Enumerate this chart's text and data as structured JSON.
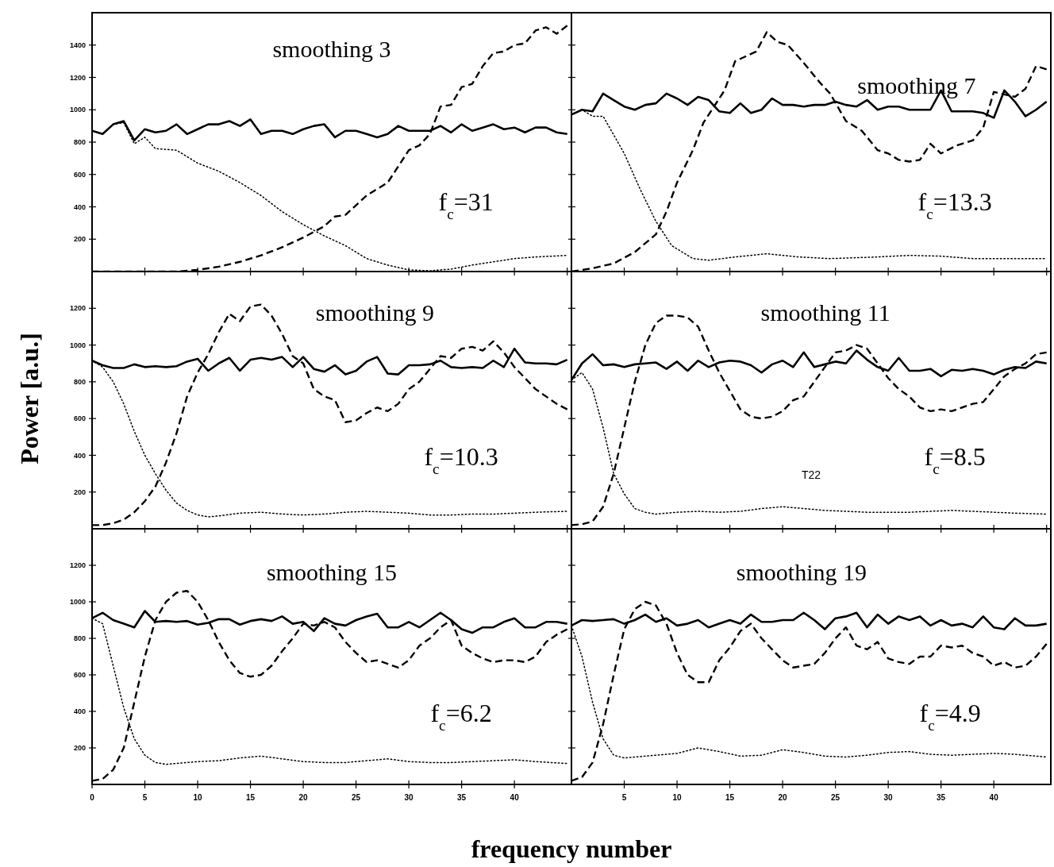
{
  "chart_data": [
    {
      "type": "line",
      "title": "smoothing 3",
      "annotations": [
        "f$_{c}$=31"
      ],
      "xlim": [
        0,
        45.4
      ],
      "xticks": [
        0,
        5,
        10,
        15,
        20,
        25,
        30,
        35,
        40,
        45
      ],
      "ylim": [
        0,
        1600
      ],
      "yticks": [
        200,
        400,
        600,
        800,
        1000,
        1200,
        1400
      ],
      "tick_labels": "y",
      "series": [
        {
          "color": "#000000",
          "line_style": "solid",
          "x": [
            0,
            1,
            2,
            3,
            4,
            5,
            6,
            7,
            8,
            9,
            10,
            11,
            12,
            13,
            14,
            15,
            16,
            17,
            18,
            19,
            20,
            21,
            22,
            23,
            24,
            25,
            26,
            27,
            28,
            29,
            30,
            31,
            32,
            33,
            34,
            35,
            36,
            37,
            38,
            39,
            40,
            41,
            42,
            43,
            44,
            45
          ],
          "values": [
            870,
            850,
            910,
            930,
            810,
            880,
            860,
            870,
            910,
            850,
            880,
            910,
            910,
            930,
            900,
            940,
            850,
            870,
            870,
            850,
            880,
            900,
            910,
            830,
            870,
            870,
            850,
            830,
            850,
            900,
            870,
            870,
            870,
            900,
            860,
            910,
            870,
            890,
            910,
            880,
            890,
            860,
            890,
            890,
            860,
            850
          ]
        },
        {
          "color": "#000000",
          "line_style": "dashed",
          "x": [
            0,
            2,
            4,
            6,
            8,
            10,
            12,
            14,
            16,
            18,
            20,
            22,
            23,
            24,
            26,
            28,
            30,
            31,
            32,
            33,
            34,
            35,
            36,
            37,
            38,
            39,
            40,
            41,
            42,
            43,
            44,
            45
          ],
          "values": [
            0,
            0,
            0,
            0,
            0,
            10,
            30,
            60,
            100,
            150,
            210,
            280,
            340,
            350,
            470,
            550,
            750,
            780,
            850,
            1020,
            1030,
            1140,
            1160,
            1270,
            1350,
            1360,
            1400,
            1410,
            1490,
            1510,
            1470,
            1520
          ]
        },
        {
          "color": "#000000",
          "line_style": "dotted",
          "x": [
            0,
            1,
            2,
            3,
            4,
            5,
            6,
            8,
            10,
            12,
            14,
            16,
            18,
            20,
            22,
            24,
            26,
            28,
            30,
            32,
            34,
            36,
            38,
            40,
            42,
            45
          ],
          "values": [
            870,
            850,
            910,
            920,
            790,
            830,
            760,
            750,
            670,
            620,
            550,
            470,
            370,
            290,
            220,
            160,
            80,
            40,
            10,
            5,
            15,
            40,
            60,
            80,
            90,
            100
          ]
        }
      ]
    },
    {
      "type": "line",
      "title": "smoothing 7",
      "annotations": [
        "f$_{c}$=13.3"
      ],
      "xlim": [
        0,
        45.4
      ],
      "xticks": [
        0,
        5,
        10,
        15,
        20,
        25,
        30,
        35,
        40,
        45
      ],
      "ylim": [
        0,
        1600
      ],
      "yticks": [
        200,
        400,
        600,
        800,
        1000,
        1200,
        1400
      ],
      "tick_labels": false,
      "series": [
        {
          "color": "#000000",
          "line_style": "solid",
          "x": [
            0,
            1,
            2,
            3,
            4,
            5,
            6,
            7,
            8,
            9,
            10,
            11,
            12,
            13,
            14,
            15,
            16,
            17,
            18,
            19,
            20,
            21,
            22,
            23,
            24,
            25,
            26,
            27,
            28,
            29,
            30,
            31,
            32,
            33,
            34,
            35,
            36,
            37,
            38,
            39,
            40,
            41,
            42,
            43,
            44,
            45
          ],
          "values": [
            970,
            1000,
            990,
            1100,
            1060,
            1020,
            1000,
            1030,
            1040,
            1100,
            1070,
            1030,
            1080,
            1060,
            990,
            980,
            1040,
            980,
            1000,
            1070,
            1030,
            1030,
            1020,
            1030,
            1030,
            1050,
            1030,
            1020,
            1060,
            1000,
            1020,
            1020,
            1000,
            1000,
            1000,
            1120,
            990,
            990,
            990,
            980,
            950,
            1120,
            1050,
            960,
            1000,
            1050
          ]
        },
        {
          "color": "#000000",
          "line_style": "dashed",
          "x": [
            0,
            2,
            4,
            6,
            8,
            9,
            10,
            11.5,
            12.5,
            14.5,
            15.5,
            17.5,
            18.5,
            19.5,
            20.5,
            22,
            23.5,
            24.5,
            26,
            27.5,
            29,
            30,
            31,
            32,
            33,
            34,
            35,
            36.5,
            38,
            39,
            40,
            42,
            43,
            44,
            45
          ],
          "values": [
            0,
            20,
            50,
            120,
            230,
            370,
            550,
            750,
            920,
            1120,
            1300,
            1360,
            1480,
            1420,
            1400,
            1290,
            1170,
            1100,
            930,
            870,
            750,
            730,
            690,
            680,
            690,
            790,
            730,
            780,
            810,
            890,
            1110,
            1080,
            1130,
            1270,
            1250
          ]
        },
        {
          "color": "#000000",
          "line_style": "dotted",
          "x": [
            0,
            1,
            2,
            3,
            5,
            6.5,
            8,
            9.5,
            11.5,
            13,
            15.5,
            18.5,
            21.5,
            24.5,
            29,
            32,
            35,
            38,
            41,
            45
          ],
          "values": [
            970,
            1000,
            960,
            960,
            730,
            510,
            310,
            160,
            80,
            70,
            90,
            110,
            90,
            80,
            90,
            100,
            95,
            80,
            80,
            80
          ]
        }
      ]
    },
    {
      "type": "line",
      "title": "smoothing 9",
      "ylabel": "Power [a.u.]",
      "annotations": [
        "f$_{c}$=10.3"
      ],
      "xlim": [
        0,
        45.4
      ],
      "xticks": [
        0,
        5,
        10,
        15,
        20,
        25,
        30,
        35,
        40,
        45
      ],
      "ylim": [
        0,
        1400
      ],
      "yticks": [
        200,
        400,
        600,
        800,
        1000,
        1200
      ],
      "tick_labels": "y",
      "series": [
        {
          "color": "#000000",
          "line_style": "solid",
          "x": [
            0,
            1,
            2,
            3,
            4,
            5,
            6,
            7,
            8,
            9,
            10,
            11,
            12,
            13,
            14,
            15,
            16,
            17,
            18,
            19,
            20,
            21,
            22,
            23,
            24,
            25,
            26,
            27,
            28,
            29,
            30,
            31,
            32,
            33,
            34,
            35,
            36,
            37,
            38,
            39,
            40,
            41,
            42,
            43,
            44,
            45
          ],
          "values": [
            915,
            890,
            875,
            875,
            895,
            880,
            885,
            880,
            885,
            910,
            925,
            860,
            900,
            930,
            860,
            920,
            930,
            920,
            935,
            880,
            935,
            870,
            855,
            890,
            840,
            860,
            910,
            935,
            845,
            840,
            890,
            890,
            895,
            915,
            880,
            875,
            880,
            875,
            915,
            880,
            980,
            905,
            900,
            900,
            895,
            920
          ]
        },
        {
          "color": "#000000",
          "line_style": "dashed",
          "x": [
            0,
            1,
            2,
            3,
            4,
            5,
            6,
            7,
            8,
            9,
            10,
            11,
            12,
            13,
            14,
            15,
            16,
            17,
            18,
            19,
            20,
            21,
            22,
            23,
            24,
            25,
            26,
            27,
            28,
            29,
            30,
            31,
            32,
            33,
            34,
            35,
            36,
            37,
            38,
            39,
            40,
            41,
            42,
            43,
            44,
            45
          ],
          "values": [
            20,
            20,
            30,
            50,
            90,
            150,
            230,
            360,
            520,
            720,
            850,
            950,
            1070,
            1170,
            1130,
            1210,
            1220,
            1160,
            1060,
            940,
            900,
            760,
            720,
            700,
            580,
            590,
            630,
            660,
            640,
            680,
            760,
            800,
            870,
            940,
            930,
            980,
            990,
            970,
            1020,
            960,
            880,
            820,
            760,
            720,
            680,
            650
          ]
        },
        {
          "color": "#000000",
          "line_style": "dotted",
          "x": [
            0,
            1,
            2,
            3,
            4,
            5,
            6,
            7,
            8,
            9,
            10,
            11,
            12,
            14,
            16,
            18,
            20,
            22,
            24,
            26,
            28,
            30,
            32,
            34,
            36,
            38,
            40,
            42,
            45
          ],
          "values": [
            915,
            880,
            800,
            680,
            530,
            400,
            300,
            210,
            140,
            100,
            75,
            65,
            70,
            85,
            90,
            80,
            75,
            80,
            90,
            95,
            90,
            85,
            75,
            75,
            80,
            80,
            85,
            90,
            95
          ]
        }
      ]
    },
    {
      "type": "line",
      "title": "smoothing 11",
      "annotations": [
        "f$_{c}$=8.5",
        "T22"
      ],
      "xlim": [
        0,
        45.4
      ],
      "xticks": [
        0,
        5,
        10,
        15,
        20,
        25,
        30,
        35,
        40,
        45
      ],
      "ylim": [
        0,
        1400
      ],
      "yticks": [
        200,
        400,
        600,
        800,
        1000,
        1200
      ],
      "tick_labels": false,
      "series": [
        {
          "color": "#000000",
          "line_style": "solid",
          "x": [
            0,
            1,
            2,
            3,
            4,
            5,
            6,
            7,
            8,
            9,
            10,
            11,
            12,
            13,
            14,
            15,
            16,
            17,
            18,
            19,
            20,
            21,
            22,
            23,
            24,
            25,
            26,
            27,
            28,
            29,
            30,
            31,
            32,
            33,
            34,
            35,
            36,
            37,
            38,
            39,
            40,
            41,
            42,
            43,
            44,
            45
          ],
          "values": [
            810,
            900,
            950,
            890,
            895,
            880,
            895,
            900,
            905,
            870,
            910,
            860,
            915,
            880,
            905,
            915,
            910,
            890,
            850,
            895,
            915,
            880,
            960,
            880,
            895,
            910,
            900,
            970,
            920,
            880,
            860,
            930,
            860,
            860,
            870,
            830,
            865,
            860,
            870,
            860,
            840,
            865,
            880,
            875,
            910,
            900
          ]
        },
        {
          "color": "#000000",
          "line_style": "dashed",
          "x": [
            0,
            1,
            2,
            3,
            4,
            5,
            6,
            7,
            8,
            9,
            10,
            11,
            12,
            13,
            14,
            15,
            16,
            17,
            18,
            19,
            20,
            21,
            22,
            23,
            24,
            25,
            26,
            27,
            28,
            29,
            30,
            31,
            32,
            33,
            34,
            35,
            36,
            37,
            38,
            39,
            40,
            41,
            42,
            43,
            44,
            45
          ],
          "values": [
            20,
            25,
            40,
            120,
            300,
            550,
            800,
            1000,
            1120,
            1160,
            1160,
            1150,
            1100,
            970,
            850,
            750,
            650,
            610,
            600,
            610,
            640,
            700,
            720,
            800,
            880,
            960,
            970,
            1000,
            980,
            900,
            820,
            760,
            720,
            660,
            640,
            650,
            640,
            660,
            680,
            690,
            760,
            830,
            870,
            900,
            950,
            960
          ]
        },
        {
          "color": "#000000",
          "line_style": "dotted",
          "x": [
            0,
            1,
            2,
            3,
            4,
            5,
            6,
            7,
            8,
            10,
            12,
            14,
            16,
            18,
            20,
            22,
            24,
            26,
            28,
            30,
            32,
            34,
            36,
            38,
            40,
            42,
            45
          ],
          "values": [
            810,
            850,
            760,
            550,
            300,
            190,
            110,
            90,
            80,
            90,
            95,
            90,
            95,
            110,
            120,
            110,
            100,
            95,
            90,
            90,
            90,
            95,
            100,
            95,
            90,
            85,
            80
          ]
        }
      ]
    },
    {
      "type": "line",
      "title": "smoothing 15",
      "annotations": [
        "f$_{c}$=6.2"
      ],
      "xlim": [
        0,
        45.4
      ],
      "xticks": [
        0,
        5,
        10,
        15,
        20,
        25,
        30,
        35,
        40
      ],
      "ylim": [
        0,
        1400
      ],
      "yticks": [
        200,
        400,
        600,
        800,
        1000,
        1200
      ],
      "series": [
        {
          "color": "#000000",
          "line_style": "solid",
          "x": [
            0,
            1,
            2,
            3,
            4,
            5,
            6,
            7,
            8,
            9,
            10,
            11,
            12,
            13,
            14,
            15,
            16,
            17,
            18,
            19,
            20,
            21,
            22,
            23,
            24,
            25,
            26,
            27,
            28,
            29,
            30,
            31,
            32,
            33,
            34,
            35,
            36,
            37,
            38,
            39,
            40,
            41,
            42,
            43,
            44,
            45
          ],
          "values": [
            910,
            940,
            900,
            880,
            860,
            950,
            890,
            895,
            890,
            895,
            875,
            885,
            905,
            905,
            875,
            895,
            905,
            895,
            920,
            880,
            890,
            840,
            910,
            880,
            870,
            900,
            920,
            935,
            860,
            860,
            890,
            860,
            900,
            940,
            900,
            850,
            830,
            860,
            860,
            890,
            910,
            860,
            860,
            890,
            890,
            880
          ]
        },
        {
          "color": "#000000",
          "line_style": "dashed",
          "x": [
            0,
            1,
            2,
            3,
            4,
            5,
            6,
            7,
            8,
            9,
            10,
            11,
            12,
            13,
            14,
            15,
            16,
            17,
            18,
            19,
            20,
            21,
            22,
            23,
            24,
            25,
            26,
            27,
            28,
            29,
            30,
            31,
            32,
            33,
            34,
            35,
            36,
            37,
            38,
            39,
            40,
            41,
            42,
            43,
            44,
            45
          ],
          "values": [
            20,
            30,
            80,
            200,
            450,
            700,
            900,
            1000,
            1050,
            1060,
            1000,
            900,
            780,
            680,
            610,
            590,
            600,
            650,
            730,
            800,
            880,
            870,
            890,
            860,
            780,
            720,
            670,
            680,
            660,
            640,
            680,
            760,
            800,
            860,
            900,
            760,
            720,
            690,
            670,
            680,
            680,
            670,
            700,
            780,
            820,
            850
          ]
        },
        {
          "color": "#000000",
          "line_style": "dotted",
          "x": [
            0,
            1,
            2,
            3,
            4,
            5,
            6,
            7,
            8,
            10,
            12,
            14,
            16,
            18,
            20,
            22,
            24,
            26,
            28,
            30,
            32,
            34,
            36,
            38,
            40,
            42,
            45
          ],
          "values": [
            910,
            880,
            650,
            420,
            250,
            160,
            120,
            110,
            115,
            125,
            130,
            145,
            155,
            140,
            125,
            120,
            120,
            130,
            140,
            125,
            120,
            120,
            125,
            130,
            135,
            125,
            115
          ]
        }
      ]
    },
    {
      "type": "line",
      "title": "smoothing 19",
      "xlabel": "frequency number",
      "annotations": [
        "f$_{c}$=4.9"
      ],
      "xlim": [
        0,
        45.4
      ],
      "xticks": [
        5,
        10,
        15,
        20,
        25,
        30,
        35,
        40
      ],
      "ylim": [
        0,
        1400
      ],
      "yticks": [
        200,
        400,
        600,
        800,
        1000,
        1200
      ],
      "tick_labels": "x",
      "series": [
        {
          "color": "#000000",
          "line_style": "solid",
          "x": [
            0,
            1,
            2,
            3,
            4,
            5,
            6,
            7,
            8,
            9,
            10,
            11,
            12,
            13,
            14,
            15,
            16,
            17,
            18,
            19,
            20,
            21,
            22,
            23,
            24,
            25,
            26,
            27,
            28,
            29,
            30,
            31,
            32,
            33,
            34,
            35,
            36,
            37,
            38,
            39,
            40,
            41,
            42,
            43,
            44,
            45
          ],
          "values": [
            870,
            900,
            895,
            900,
            905,
            880,
            900,
            930,
            890,
            910,
            870,
            880,
            900,
            860,
            880,
            900,
            880,
            930,
            890,
            890,
            900,
            900,
            940,
            900,
            850,
            910,
            920,
            940,
            860,
            930,
            880,
            920,
            900,
            920,
            870,
            900,
            870,
            880,
            860,
            920,
            860,
            850,
            910,
            870,
            870,
            880
          ]
        },
        {
          "color": "#000000",
          "line_style": "dashed",
          "x": [
            0,
            1,
            2,
            3,
            4,
            5,
            6,
            7,
            8,
            9,
            10,
            11,
            12,
            13,
            14,
            15,
            16,
            17,
            18,
            19,
            20,
            21,
            22,
            23,
            24,
            25,
            26,
            27,
            28,
            29,
            30,
            31,
            32,
            33,
            34,
            35,
            36,
            37,
            38,
            39,
            40,
            41,
            42,
            43,
            44,
            45
          ],
          "values": [
            20,
            40,
            120,
            330,
            600,
            850,
            960,
            1000,
            980,
            880,
            720,
            600,
            560,
            560,
            680,
            750,
            840,
            880,
            800,
            740,
            680,
            640,
            650,
            660,
            720,
            800,
            860,
            760,
            740,
            780,
            690,
            670,
            660,
            700,
            700,
            760,
            750,
            760,
            720,
            700,
            650,
            670,
            640,
            650,
            700,
            770
          ]
        },
        {
          "color": "#000000",
          "line_style": "dotted",
          "x": [
            0,
            1,
            2,
            3,
            4,
            5,
            6,
            8,
            10,
            12,
            14,
            16,
            18,
            20,
            22,
            24,
            26,
            28,
            30,
            32,
            34,
            36,
            38,
            40,
            42,
            45
          ],
          "values": [
            870,
            700,
            450,
            250,
            160,
            145,
            150,
            160,
            170,
            200,
            180,
            155,
            160,
            190,
            175,
            155,
            150,
            160,
            175,
            180,
            165,
            160,
            165,
            170,
            165,
            150
          ]
        }
      ]
    }
  ]
}
